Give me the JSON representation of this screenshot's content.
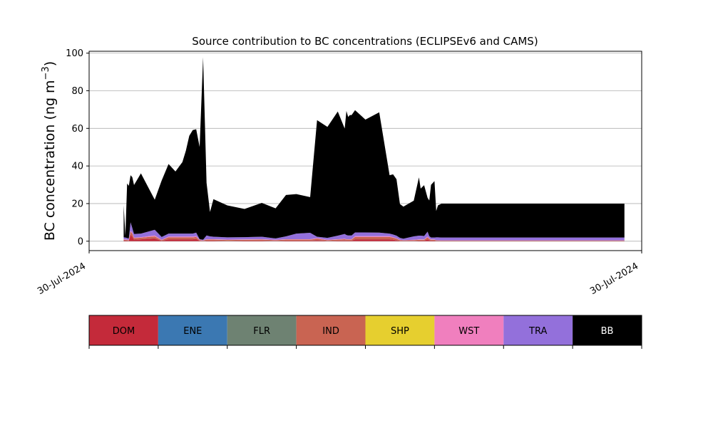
{
  "chart_data": {
    "type": "area",
    "title": "Source contribution to BC concentrations (ECLIPSEv6 and CAMS)",
    "ylabel_main": "BC concentration (ng m",
    "ylabel_sup": "−3",
    "ylabel_close": ")",
    "ylim": [
      -5,
      101
    ],
    "yticks": [
      0,
      20,
      40,
      60,
      80,
      100
    ],
    "xticklabels": [
      "30-Jul-2024",
      "30-Jul-2024"
    ],
    "grid": "horizontal",
    "x_index_range": [
      -10,
      150
    ],
    "x": [
      0,
      0.5,
      1,
      1.5,
      2,
      2.5,
      3,
      5,
      9,
      11,
      13,
      15,
      17,
      18,
      19,
      20,
      21,
      22,
      23,
      24,
      25,
      26,
      30,
      35,
      40,
      44,
      47,
      50,
      54,
      56,
      59,
      62,
      64,
      64.5,
      65,
      65.5,
      66,
      67,
      70,
      74,
      77,
      78,
      79,
      80,
      81,
      84,
      85.5,
      86,
      87,
      88,
      88.5,
      89,
      90,
      90.5,
      91,
      92,
      145
    ],
    "series": [
      {
        "name": "DOM",
        "color": "#c42a3a",
        "values": [
          0.5,
          0.4,
          0.3,
          0.2,
          3.5,
          2.5,
          0.8,
          1.0,
          1.5,
          0.2,
          1.0,
          1.0,
          1.0,
          1.0,
          1.0,
          1.0,
          1.2,
          0.2,
          0.1,
          0.3,
          0.3,
          0.3,
          0.2,
          0.3,
          0.3,
          0.2,
          0.3,
          0.3,
          0.3,
          0.5,
          0.2,
          0.3,
          0.4,
          0.3,
          0.3,
          0.3,
          0.3,
          1.0,
          1.0,
          1.0,
          1.0,
          0.8,
          0.5,
          0.2,
          0.2,
          0.2,
          0.3,
          0.3,
          0.3,
          1.0,
          0.5,
          0.3,
          0.3,
          0.2,
          0.2,
          0.1,
          0.1
        ]
      },
      {
        "name": "ENE",
        "color": "#3b78b2",
        "values": [
          0.02,
          0.02,
          0.02,
          0.02,
          0.02,
          0.02,
          0.02,
          0.02,
          0.02,
          0.02,
          0.02,
          0.02,
          0.02,
          0.02,
          0.02,
          0.02,
          0.02,
          0.02,
          0.02,
          0.02,
          0.02,
          0.02,
          0.02,
          0.02,
          0.02,
          0.02,
          0.02,
          0.02,
          0.02,
          0.02,
          0.02,
          0.02,
          0.02,
          0.02,
          0.02,
          0.02,
          0.02,
          0.02,
          0.02,
          0.02,
          0.02,
          0.02,
          0.02,
          0.02,
          0.02,
          0.02,
          0.02,
          0.02,
          0.02,
          0.02,
          0.02,
          0.02,
          0.02,
          0.02,
          0.02,
          0.02,
          0.02
        ]
      },
      {
        "name": "FLR",
        "color": "#6e8272",
        "values": [
          0.02,
          0.02,
          0.02,
          0.02,
          0.02,
          0.02,
          0.02,
          0.02,
          0.02,
          0.02,
          0.02,
          0.02,
          0.02,
          0.02,
          0.02,
          0.02,
          0.02,
          0.02,
          0.02,
          0.02,
          0.02,
          0.02,
          0.02,
          0.02,
          0.02,
          0.02,
          0.02,
          0.02,
          0.02,
          0.02,
          0.02,
          0.02,
          0.02,
          0.02,
          0.02,
          0.02,
          0.02,
          0.02,
          0.02,
          0.02,
          0.02,
          0.02,
          0.02,
          0.02,
          0.02,
          0.02,
          0.02,
          0.02,
          0.02,
          0.02,
          0.02,
          0.02,
          0.02,
          0.02,
          0.02,
          0.02,
          0.02
        ]
      },
      {
        "name": "IND",
        "color": "#c96452",
        "values": [
          0.3,
          0.3,
          0.3,
          0.2,
          1.5,
          1.5,
          0.8,
          0.8,
          1.0,
          0.3,
          1.0,
          1.0,
          1.0,
          1.0,
          1.0,
          1.0,
          1.0,
          0.3,
          0.2,
          0.5,
          0.5,
          0.5,
          0.4,
          0.4,
          0.5,
          0.3,
          0.5,
          0.5,
          0.5,
          0.8,
          0.3,
          0.5,
          0.6,
          0.5,
          0.5,
          0.5,
          0.5,
          1.2,
          1.2,
          1.2,
          1.2,
          1.0,
          0.8,
          0.3,
          0.2,
          0.3,
          0.4,
          0.4,
          0.4,
          1.0,
          0.6,
          0.4,
          0.4,
          0.2,
          0.2,
          0.2,
          0.2
        ]
      },
      {
        "name": "SHP",
        "color": "#e6cf2f",
        "values": [
          0.02,
          0.02,
          0.02,
          0.02,
          0.02,
          0.02,
          0.02,
          0.02,
          0.02,
          0.02,
          0.02,
          0.02,
          0.02,
          0.02,
          0.02,
          0.02,
          0.02,
          0.02,
          0.02,
          0.02,
          0.02,
          0.02,
          0.02,
          0.02,
          0.02,
          0.02,
          0.02,
          0.02,
          0.02,
          0.02,
          0.02,
          0.02,
          0.02,
          0.02,
          0.02,
          0.02,
          0.02,
          0.02,
          0.02,
          0.02,
          0.02,
          0.02,
          0.02,
          0.02,
          0.02,
          0.02,
          0.02,
          0.02,
          0.02,
          0.02,
          0.02,
          0.02,
          0.02,
          0.02,
          0.02,
          0.02,
          0.02
        ]
      },
      {
        "name": "WST",
        "color": "#f07fbe",
        "values": [
          0.2,
          0.2,
          0.2,
          0.2,
          0.5,
          0.5,
          0.3,
          0.3,
          0.5,
          0.2,
          0.4,
          0.4,
          0.4,
          0.4,
          0.4,
          0.4,
          0.4,
          0.2,
          0.1,
          0.2,
          0.2,
          0.2,
          0.2,
          0.2,
          0.2,
          0.2,
          0.2,
          0.2,
          0.2,
          0.3,
          0.2,
          0.2,
          0.3,
          0.2,
          0.2,
          0.2,
          0.2,
          0.4,
          0.4,
          0.4,
          0.4,
          0.3,
          0.2,
          0.2,
          0.1,
          0.2,
          0.2,
          0.2,
          0.2,
          0.4,
          0.3,
          0.2,
          0.2,
          0.1,
          0.1,
          0.1,
          0.1
        ]
      },
      {
        "name": "TRA",
        "color": "#9370db",
        "values": [
          1.0,
          1.0,
          0.8,
          0.8,
          4.5,
          2.5,
          1.9,
          1.9,
          3.0,
          1.5,
          1.6,
          1.6,
          1.6,
          1.6,
          1.6,
          1.6,
          1.9,
          0.3,
          0.3,
          2.0,
          1.5,
          1.3,
          1.2,
          1.2,
          1.3,
          0.7,
          1.5,
          3.0,
          3.4,
          0.7,
          1.0,
          1.9,
          2.5,
          2.2,
          2.0,
          2.0,
          2.0,
          2.0,
          2.0,
          1.9,
          1.4,
          1.4,
          1.4,
          1.0,
          0.8,
          1.8,
          2.0,
          2.0,
          1.8,
          2.6,
          1.2,
          1.0,
          1.0,
          1.5,
          1.5,
          1.5,
          1.5
        ]
      },
      {
        "name": "BB",
        "color": "#000000",
        "values": [
          17.0,
          1.0,
          29.0,
          28.0,
          25.0,
          27.0,
          26.0,
          32.0,
          16.0,
          30.0,
          37.0,
          33.0,
          38.0,
          44.0,
          52.0,
          55.0,
          55.0,
          49.0,
          97.0,
          28.0,
          13.0,
          20.0,
          17.0,
          15.0,
          18.0,
          16.0,
          22.0,
          21.0,
          19.0,
          62.0,
          59.0,
          66.0,
          56.0,
          66.0,
          63.0,
          64.0,
          64.0,
          65.0,
          60.0,
          64.0,
          31.0,
          32.0,
          30.0,
          18.0,
          17.0,
          19.0,
          31.0,
          25.0,
          27.0,
          18.0,
          19.0,
          28.0,
          30.0,
          14.0,
          17.0,
          18.0,
          18.0
        ]
      }
    ],
    "legend_placement": "below"
  }
}
